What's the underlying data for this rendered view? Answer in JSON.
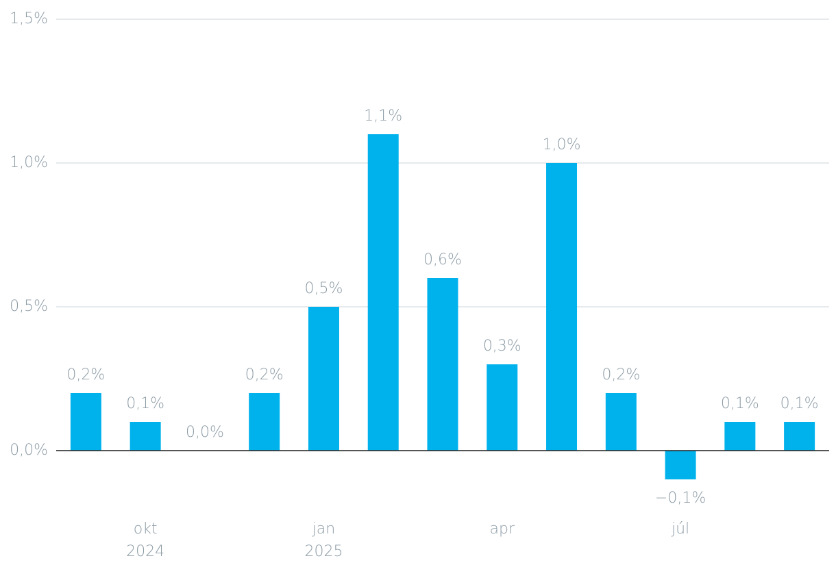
{
  "chart_data": {
    "type": "bar",
    "categories": [
      null,
      "okt 2024",
      null,
      null,
      "jan 2025",
      null,
      null,
      "apr",
      null,
      null,
      "júl",
      null,
      null
    ],
    "values": [
      0.2,
      0.1,
      0.0,
      0.2,
      0.5,
      1.1,
      0.6,
      0.3,
      1.0,
      0.2,
      -0.1,
      0.1,
      0.1
    ],
    "value_labels": [
      "0,2%",
      "0,1%",
      "0,0%",
      "0,2%",
      "0,5%",
      "1,1%",
      "0,6%",
      "0,3%",
      "1,0%",
      "0,2%",
      "−0,1%",
      "0,1%",
      "0,1%"
    ],
    "color": "#00b2ec",
    "ylim": [
      -0.2,
      1.5
    ],
    "yticks": [
      {
        "value": 0,
        "label": "0,0%"
      },
      {
        "value": 0.5,
        "label": "0,5%"
      },
      {
        "value": 1.0,
        "label": "1,0%"
      },
      {
        "value": 1.5,
        "label": "1,5%"
      }
    ],
    "grid": true
  }
}
